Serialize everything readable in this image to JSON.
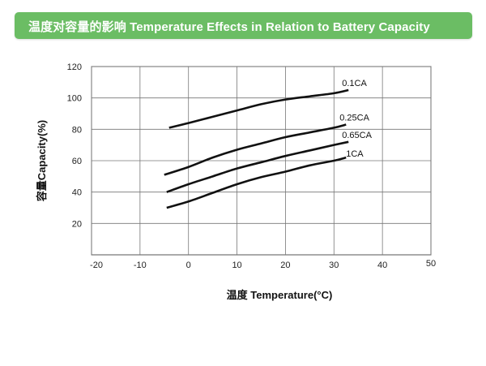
{
  "banner": {
    "title": "温度对容量的影响 Temperature Effects in Relation to Battery Capacity"
  },
  "chart_data": {
    "type": "line",
    "title": "温度对容量的影响 Temperature Effects in Relation to Battery Capacity",
    "xlabel": "温度 Temperature(°C)",
    "ylabel": "容量Capacity(%)",
    "xlim": [
      -20,
      50
    ],
    "ylim": [
      0,
      120
    ],
    "xticks": [
      -20,
      -10,
      0,
      10,
      20,
      30,
      40,
      50
    ],
    "yticks": [
      20,
      40,
      60,
      80,
      100,
      120
    ],
    "grid": true,
    "line_color": "#111111",
    "series": [
      {
        "name": "0.1CA",
        "x": [
          -4,
          0,
          5,
          10,
          15,
          20,
          25,
          30,
          33
        ],
        "y": [
          81,
          84,
          88,
          92,
          96,
          99,
          101,
          103,
          105
        ]
      },
      {
        "name": "0.25CA",
        "x": [
          -5,
          0,
          5,
          10,
          15,
          20,
          25,
          30,
          32.5
        ],
        "y": [
          51,
          56,
          62,
          67,
          71,
          75,
          78,
          81,
          83
        ]
      },
      {
        "name": "0.65CA",
        "x": [
          -4.5,
          0,
          5,
          10,
          15,
          20,
          25,
          30,
          33
        ],
        "y": [
          40,
          45,
          50,
          55,
          59,
          63,
          66.5,
          70,
          72
        ]
      },
      {
        "name": "1CA",
        "x": [
          -4.5,
          0,
          5,
          10,
          15,
          20,
          25,
          30,
          32.5
        ],
        "y": [
          30,
          34,
          39.5,
          45,
          49.5,
          53,
          57,
          60,
          62
        ]
      }
    ]
  }
}
